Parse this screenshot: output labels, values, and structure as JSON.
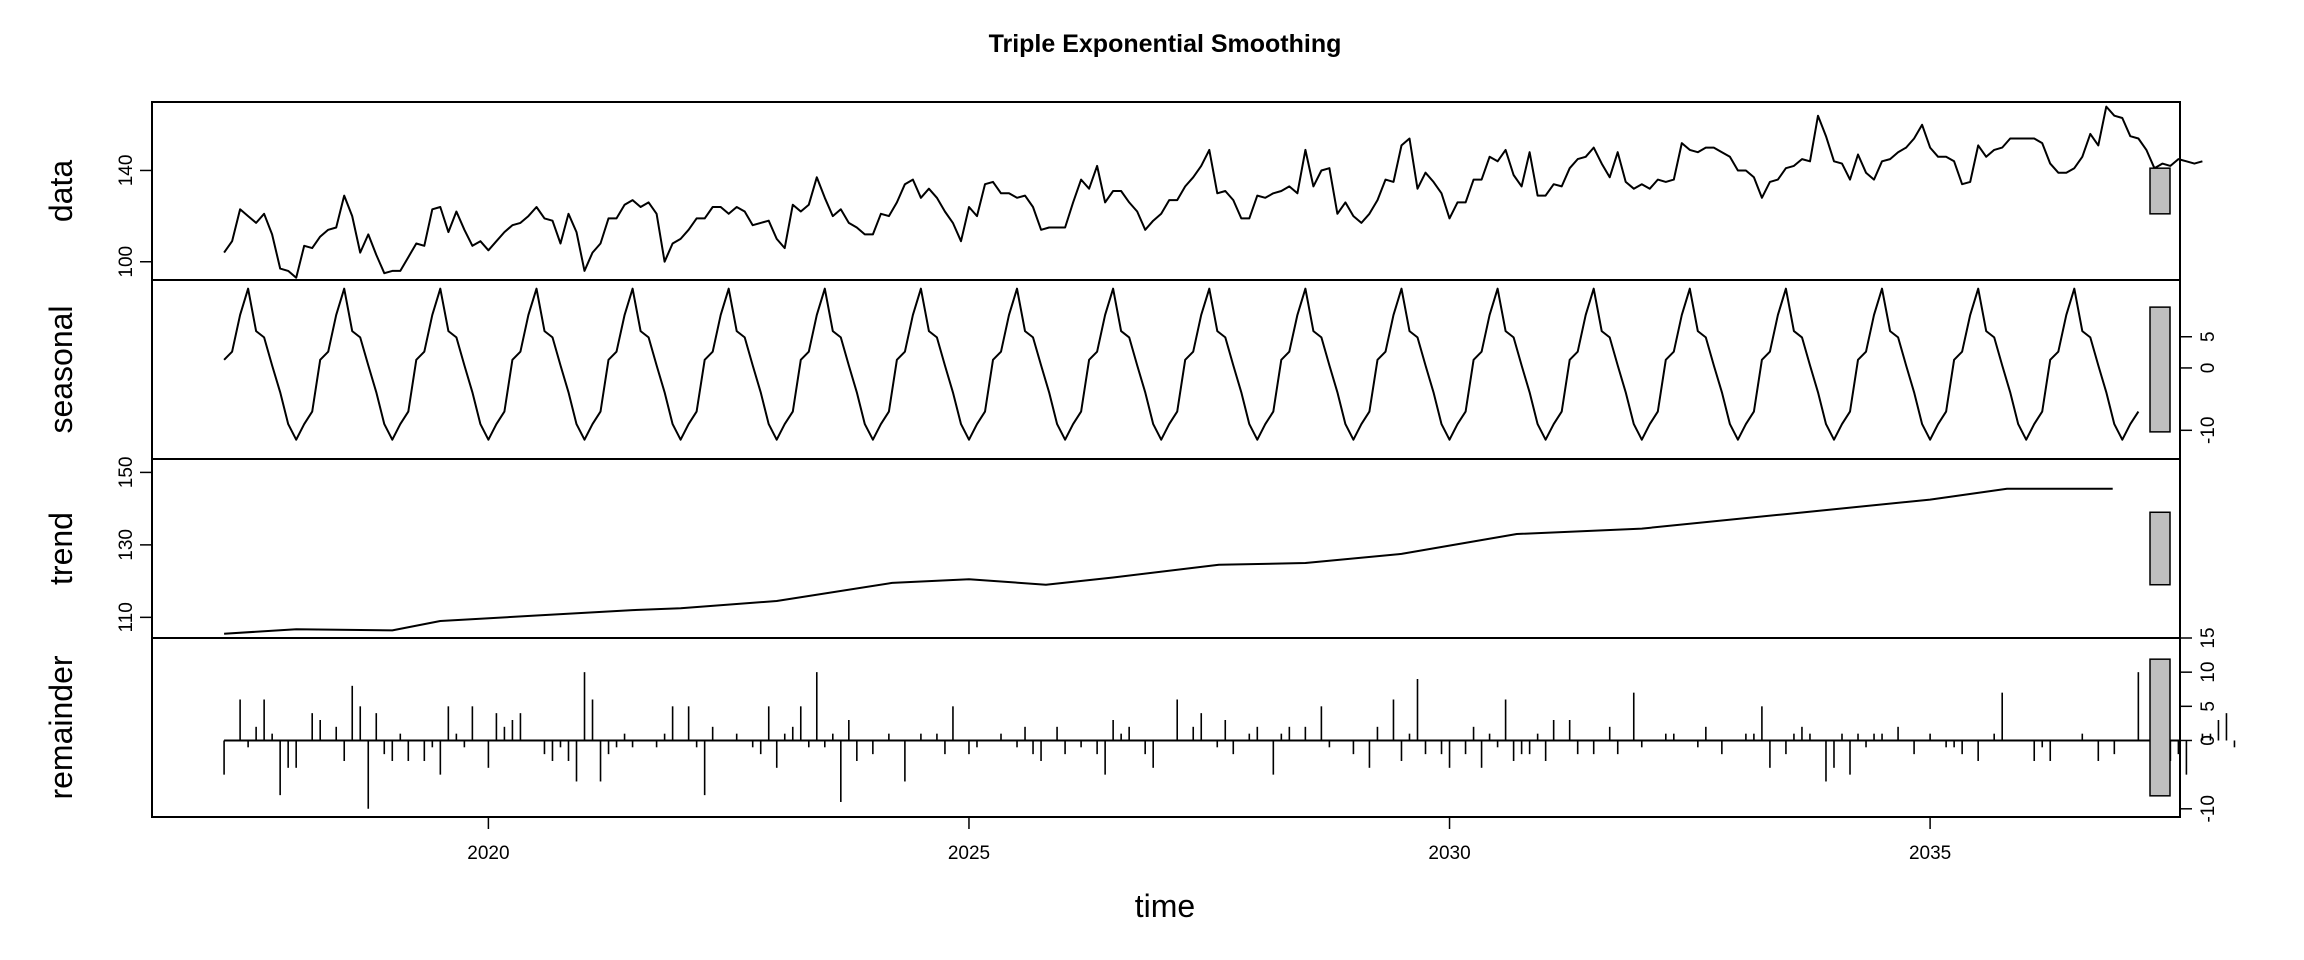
{
  "chart_data": {
    "type": "line",
    "title": "Triple Exponential Smoothing",
    "xlabel": "time",
    "x_range": [
      2016.5,
      2037.6
    ],
    "x_ticks": [
      2020,
      2025,
      2030,
      2035
    ],
    "x_tick_labels": [
      "2020",
      "2025",
      "2030",
      "2035"
    ],
    "start": 2017.25,
    "frequency": 12,
    "panels": [
      {
        "name": "data",
        "label": "data",
        "style": "line",
        "ylim": [
          92,
          170
        ],
        "ticks": [
          100,
          140
        ],
        "tick_labels": [
          "100",
          "140"
        ],
        "axis_side": "left",
        "values": [
          104,
          109,
          123,
          120,
          117,
          121,
          112,
          97,
          96,
          93,
          107,
          106,
          111,
          114,
          115,
          129,
          120,
          104,
          112,
          103,
          95,
          96,
          96,
          102,
          108,
          107,
          123,
          124,
          113,
          122,
          114,
          107,
          109,
          105,
          109,
          113,
          116,
          117,
          120,
          124,
          119,
          118,
          108,
          121,
          113,
          96,
          104,
          108,
          119,
          119,
          125,
          127,
          124,
          126,
          121,
          100,
          108,
          110,
          114,
          119,
          119,
          124,
          124,
          121,
          124,
          122,
          116,
          117,
          118,
          110,
          106,
          125,
          122,
          125,
          137,
          128,
          120,
          123,
          117,
          115,
          112,
          112,
          121,
          120,
          126,
          134,
          136,
          128,
          132,
          128,
          122,
          117,
          109,
          124,
          120,
          134,
          135,
          130,
          130,
          128,
          129,
          124,
          114,
          115,
          115,
          115,
          126,
          136,
          132,
          142,
          126,
          131,
          131,
          126,
          122,
          114,
          118,
          121,
          127,
          127,
          133,
          137,
          142,
          149,
          130,
          131,
          127,
          119,
          119,
          129,
          128,
          130,
          131,
          133,
          130,
          149,
          133,
          140,
          141,
          121,
          126,
          120,
          117,
          121,
          127,
          136,
          135,
          151,
          154,
          132,
          139,
          135,
          130,
          119,
          126,
          126,
          136,
          136,
          146,
          144,
          149,
          138,
          133,
          148,
          129,
          129,
          134,
          133,
          141,
          145,
          146,
          150,
          143,
          137,
          148,
          135,
          132,
          134,
          132,
          136,
          135,
          136,
          152,
          149,
          148,
          150,
          150,
          148,
          146,
          140,
          140,
          137,
          128,
          135,
          136,
          141,
          142,
          145,
          144,
          164,
          155,
          144,
          143,
          136,
          147,
          139,
          136,
          144,
          145,
          148,
          150,
          154,
          160,
          150,
          146,
          146,
          144,
          134,
          135,
          151,
          146,
          149,
          150,
          154,
          154,
          154,
          154,
          152,
          143,
          139,
          139,
          141,
          146,
          156,
          151,
          168,
          164,
          163,
          155,
          154,
          149,
          141,
          143,
          142,
          145,
          144,
          143,
          144
        ]
      },
      {
        "name": "seasonal",
        "label": "seasonal",
        "style": "line",
        "ylim": [
          -14.6,
          14.1
        ],
        "ticks": [
          -10,
          0,
          5
        ],
        "tick_labels": [
          "-10",
          "0",
          "5"
        ],
        "axis_side": "right",
        "values": [
          1.3,
          2.6,
          8.5,
          12.7,
          5.9,
          4.9,
          0.4,
          -3.9,
          -9.0,
          -11.5,
          -9.0,
          -7.0,
          1.3,
          2.6,
          8.5,
          12.7,
          5.9,
          4.9,
          0.4,
          -3.9,
          -9.0,
          -11.5,
          -9.0,
          -7.0,
          1.3,
          2.6,
          8.5,
          12.7,
          5.9,
          4.9,
          0.4,
          -3.9,
          -9.0,
          -11.5,
          -9.0,
          -7.0,
          1.3,
          2.6,
          8.5,
          12.7,
          5.9,
          4.9,
          0.4,
          -3.9,
          -9.0,
          -11.5,
          -9.0,
          -7.0,
          1.3,
          2.6,
          8.5,
          12.7,
          5.9,
          4.9,
          0.4,
          -3.9,
          -9.0,
          -11.5,
          -9.0,
          -7.0,
          1.3,
          2.6,
          8.5,
          12.7,
          5.9,
          4.9,
          0.4,
          -3.9,
          -9.0,
          -11.5,
          -9.0,
          -7.0,
          1.3,
          2.6,
          8.5,
          12.7,
          5.9,
          4.9,
          0.4,
          -3.9,
          -9.0,
          -11.5,
          -9.0,
          -7.0,
          1.3,
          2.6,
          8.5,
          12.7,
          5.9,
          4.9,
          0.4,
          -3.9,
          -9.0,
          -11.5,
          -9.0,
          -7.0,
          1.3,
          2.6,
          8.5,
          12.7,
          5.9,
          4.9,
          0.4,
          -3.9,
          -9.0,
          -11.5,
          -9.0,
          -7.0,
          1.3,
          2.6,
          8.5,
          12.7,
          5.9,
          4.9,
          0.4,
          -3.9,
          -9.0,
          -11.5,
          -9.0,
          -7.0,
          1.3,
          2.6,
          8.5,
          12.7,
          5.9,
          4.9,
          0.4,
          -3.9,
          -9.0,
          -11.5,
          -9.0,
          -7.0,
          1.3,
          2.6,
          8.5,
          12.7,
          5.9,
          4.9,
          0.4,
          -3.9,
          -9.0,
          -11.5,
          -9.0,
          -7.0,
          1.3,
          2.6,
          8.5,
          12.7,
          5.9,
          4.9,
          0.4,
          -3.9,
          -9.0,
          -11.5,
          -9.0,
          -7.0,
          1.3,
          2.6,
          8.5,
          12.7,
          5.9,
          4.9,
          0.4,
          -3.9,
          -9.0,
          -11.5,
          -9.0,
          -7.0,
          1.3,
          2.6,
          8.5,
          12.7,
          5.9,
          4.9,
          0.4,
          -3.9,
          -9.0,
          -11.5,
          -9.0,
          -7.0,
          1.3,
          2.6,
          8.5,
          12.7,
          5.9,
          4.9,
          0.4,
          -3.9,
          -9.0,
          -11.5,
          -9.0,
          -7.0,
          1.3,
          2.6,
          8.5,
          12.7,
          5.9,
          4.9,
          0.4,
          -3.9,
          -9.0,
          -11.5,
          -9.0,
          -7.0,
          1.3,
          2.6,
          8.5,
          12.7,
          5.9,
          4.9,
          0.4,
          -3.9,
          -9.0,
          -11.5,
          -9.0,
          -7.0,
          1.3,
          2.6,
          8.5,
          12.7,
          5.9,
          4.9,
          0.4,
          -3.9,
          -9.0,
          -11.5,
          -9.0,
          -7.0,
          1.3,
          2.6,
          8.5,
          12.7,
          5.9,
          4.9,
          0.4,
          -3.9,
          -9.0,
          -11.5,
          -9.0,
          -7.0
        ]
      },
      {
        "name": "trend",
        "label": "trend",
        "style": "line",
        "ylim": [
          104.3,
          153.7
        ],
        "ticks": [
          110,
          130,
          150
        ],
        "tick_labels": [
          "110",
          "130",
          "150"
        ],
        "axis_side": "left",
        "knots": [
          [
            2017.25,
            105.5
          ],
          [
            2018.0,
            106.7
          ],
          [
            2019.0,
            106.4
          ],
          [
            2019.5,
            109.0
          ],
          [
            2020.5,
            110.5
          ],
          [
            2021.5,
            112.0
          ],
          [
            2022.0,
            112.5
          ],
          [
            2023.0,
            114.5
          ],
          [
            2024.2,
            119.5
          ],
          [
            2025.0,
            120.5
          ],
          [
            2025.8,
            119.0
          ],
          [
            2026.5,
            121.0
          ],
          [
            2027.6,
            124.5
          ],
          [
            2028.5,
            125.0
          ],
          [
            2029.5,
            127.5
          ],
          [
            2030.7,
            133.0
          ],
          [
            2032.0,
            134.5
          ],
          [
            2033.5,
            138.5
          ],
          [
            2035.0,
            142.5
          ],
          [
            2035.8,
            145.5
          ],
          [
            2036.9,
            145.5
          ]
        ]
      },
      {
        "name": "remainder",
        "label": "remainder",
        "style": "bars",
        "ylim": [
          -11.2,
          15.0
        ],
        "ticks": [
          -10,
          0,
          5,
          10,
          15
        ],
        "tick_labels": [
          "-10",
          "0",
          "5",
          "10",
          "15"
        ],
        "axis_side": "right",
        "values": [
          -5,
          0,
          6,
          -1,
          2,
          6,
          1,
          -8,
          -4,
          -4,
          0,
          4,
          3,
          0,
          2,
          -3,
          8,
          5,
          -10,
          4,
          -2,
          -3,
          1,
          -3,
          0,
          -3,
          -1,
          -5,
          5,
          1,
          -1,
          5,
          0,
          -4,
          4,
          2,
          3,
          4,
          0,
          0,
          -2,
          -3,
          -1,
          -3,
          -6,
          10,
          6,
          -6,
          -2,
          -1,
          1,
          -1,
          0,
          0,
          -1,
          1,
          5,
          0,
          5,
          -1,
          -8,
          2,
          0,
          0,
          1,
          0,
          -1,
          -2,
          5,
          -4,
          1,
          2,
          5,
          -1,
          10,
          -1,
          1,
          -9,
          3,
          -3,
          0,
          -2,
          0,
          1,
          0,
          -6,
          0,
          1,
          0,
          1,
          -2,
          5,
          0,
          -2,
          -1,
          0,
          0,
          1,
          0,
          -1,
          2,
          -2,
          -3,
          0,
          2,
          -2,
          0,
          -1,
          0,
          -2,
          -5,
          3,
          1,
          2,
          0,
          -2,
          -4,
          0,
          0,
          6,
          0,
          2,
          4,
          0,
          -1,
          3,
          -2,
          0,
          1,
          2,
          0,
          -5,
          1,
          2,
          0,
          2,
          0,
          5,
          -1,
          0,
          0,
          -2,
          0,
          -4,
          2,
          0,
          6,
          -3,
          1,
          9,
          -2,
          0,
          -2,
          -4,
          0,
          -2,
          2,
          -4,
          1,
          -1,
          6,
          -3,
          -2,
          -2,
          1,
          -3,
          3,
          0,
          3,
          -2,
          0,
          -2,
          0,
          2,
          -2,
          0,
          7,
          -1,
          0,
          0,
          1,
          1,
          0,
          0,
          -1,
          2,
          0,
          -2,
          0,
          0,
          1,
          1,
          5,
          -4,
          0,
          -2,
          1,
          2,
          1,
          0,
          -6,
          -4,
          1,
          -5,
          1,
          -1,
          1,
          1,
          0,
          2,
          0,
          -2,
          0,
          1,
          0,
          -1,
          -1,
          -2,
          0,
          -3,
          0,
          1,
          7,
          0,
          0,
          0,
          -3,
          -1,
          -3,
          0,
          0,
          0,
          1,
          0,
          -3,
          0,
          -2,
          0,
          0,
          10,
          0,
          0,
          -1,
          -3,
          -2,
          -5,
          0,
          1,
          1,
          3,
          4,
          -1
        ]
      }
    ]
  }
}
